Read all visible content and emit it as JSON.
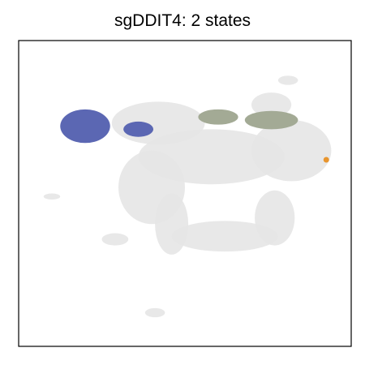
{
  "chart_data": {
    "type": "scatter",
    "title": "sgDDIT4: 2 states",
    "xlabel": "",
    "ylabel": "",
    "axes_ticks": false,
    "grid": false,
    "legend": "none",
    "xlim": [
      0,
      100
    ],
    "ylim": [
      0,
      100
    ],
    "colors": {
      "background": "#e6e6e6",
      "state_1": "#5b67b3",
      "state_2": "#a3aa95",
      "highlight": "#e8952e"
    },
    "background_clusters": [
      {
        "cx": 42,
        "cy": 73,
        "rx": 14,
        "ry": 7
      },
      {
        "cx": 58,
        "cy": 62,
        "rx": 22,
        "ry": 9
      },
      {
        "cx": 40,
        "cy": 52,
        "rx": 10,
        "ry": 12
      },
      {
        "cx": 46,
        "cy": 40,
        "rx": 5,
        "ry": 10
      },
      {
        "cx": 62,
        "cy": 36,
        "rx": 16,
        "ry": 5
      },
      {
        "cx": 77,
        "cy": 42,
        "rx": 6,
        "ry": 9
      },
      {
        "cx": 82,
        "cy": 64,
        "rx": 12,
        "ry": 10
      },
      {
        "cx": 76,
        "cy": 79,
        "rx": 6,
        "ry": 4
      },
      {
        "cx": 29,
        "cy": 35,
        "rx": 4,
        "ry": 2
      },
      {
        "cx": 10,
        "cy": 49,
        "rx": 2.5,
        "ry": 1
      },
      {
        "cx": 41,
        "cy": 11,
        "rx": 3,
        "ry": 1.5
      },
      {
        "cx": 81,
        "cy": 87,
        "rx": 3,
        "ry": 1.5
      }
    ],
    "series": [
      {
        "values": [
          {
            "cx": 20,
            "cy": 72,
            "rx": 7.5,
            "ry": 5.5
          },
          {
            "cx": 36,
            "cy": 71,
            "rx": 4.5,
            "ry": 2.5
          }
        ]
      },
      {
        "values": [
          {
            "cx": 60,
            "cy": 75,
            "rx": 6,
            "ry": 2.5
          },
          {
            "cx": 76,
            "cy": 74,
            "rx": 8,
            "ry": 3
          }
        ]
      },
      {
        "values": [
          {
            "x": 92.5,
            "y": 61
          }
        ]
      }
    ]
  }
}
